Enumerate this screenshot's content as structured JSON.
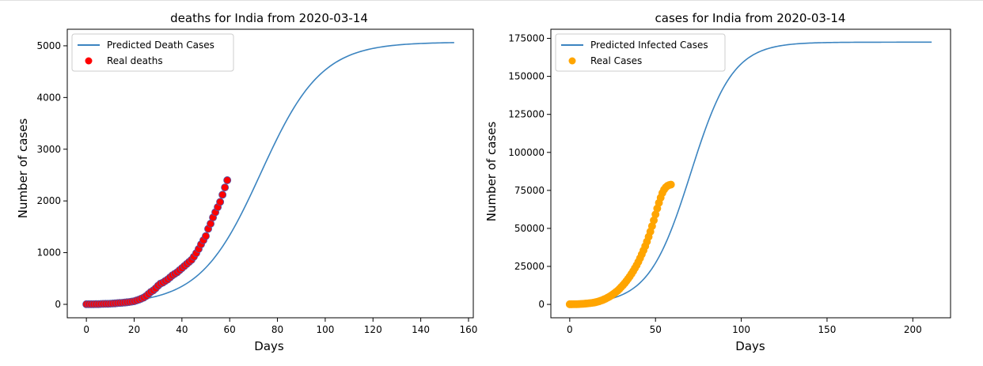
{
  "chart_data": [
    {
      "type": "line",
      "title": "deaths for India from 2020-03-14",
      "xlabel": "Days",
      "ylabel": "Number of cases",
      "xlim": [
        -8,
        162
      ],
      "ylim": [
        -260,
        5320
      ],
      "xticks": [
        0,
        20,
        40,
        60,
        80,
        100,
        120,
        140,
        160
      ],
      "yticks": [
        0,
        1000,
        2000,
        3000,
        4000,
        5000
      ],
      "grid": false,
      "legend_position": "upper-left",
      "series": [
        {
          "name": "Predicted Death Cases",
          "kind": "line",
          "color": "#3b84c0",
          "model": {
            "form": "logistic",
            "ceiling": 5070,
            "midpoint": 73,
            "rate": 0.079,
            "x_start": 0,
            "x_end": 154,
            "step": 1
          }
        },
        {
          "name": "Real deaths",
          "kind": "scatter",
          "color": "#ff0000",
          "edgecolor": "#5a4fa0",
          "x": [
            0,
            1,
            2,
            3,
            4,
            5,
            6,
            7,
            8,
            9,
            10,
            11,
            12,
            13,
            14,
            15,
            16,
            17,
            18,
            19,
            20,
            21,
            22,
            23,
            24,
            25,
            26,
            27,
            28,
            29,
            30,
            31,
            32,
            33,
            34,
            35,
            36,
            37,
            38,
            39,
            40,
            41,
            42,
            43,
            44,
            45,
            46,
            47,
            48,
            49,
            50,
            51,
            52,
            53,
            54,
            55,
            56,
            57,
            58,
            59
          ],
          "y": [
            2,
            2,
            2,
            3,
            4,
            4,
            7,
            9,
            10,
            11,
            13,
            16,
            19,
            24,
            27,
            30,
            35,
            40,
            45,
            52,
            60,
            75,
            90,
            110,
            130,
            160,
            200,
            240,
            270,
            310,
            360,
            400,
            420,
            450,
            480,
            520,
            560,
            590,
            620,
            660,
            700,
            740,
            780,
            820,
            860,
            920,
            990,
            1070,
            1160,
            1240,
            1320,
            1460,
            1560,
            1680,
            1780,
            1880,
            1980,
            2120,
            2260,
            2400
          ]
        }
      ]
    },
    {
      "type": "line",
      "title": "cases for India from 2020-03-14",
      "xlabel": "Days",
      "ylabel": "Number of cases",
      "xlim": [
        -11,
        222
      ],
      "ylim": [
        -8800,
        181000
      ],
      "xticks": [
        0,
        50,
        100,
        150,
        200
      ],
      "yticks": [
        0,
        25000,
        50000,
        75000,
        100000,
        125000,
        150000,
        175000
      ],
      "grid": false,
      "legend_position": "upper-left",
      "series": [
        {
          "name": "Predicted Infected Cases",
          "kind": "line",
          "color": "#3b84c0",
          "model": {
            "form": "logistic",
            "ceiling": 172500,
            "midpoint": 70.5,
            "rate": 0.0817,
            "x_start": 0,
            "x_end": 211,
            "step": 1
          }
        },
        {
          "name": "Real Cases",
          "kind": "scatter",
          "color": "#ffa500",
          "edgecolor": "#ffa500",
          "x": [
            0,
            1,
            2,
            3,
            4,
            5,
            6,
            7,
            8,
            9,
            10,
            11,
            12,
            13,
            14,
            15,
            16,
            17,
            18,
            19,
            20,
            21,
            22,
            23,
            24,
            25,
            26,
            27,
            28,
            29,
            30,
            31,
            32,
            33,
            34,
            35,
            36,
            37,
            38,
            39,
            40,
            41,
            42,
            43,
            44,
            45,
            46,
            47,
            48,
            49,
            50,
            51,
            52,
            53,
            54,
            55,
            56,
            57,
            58,
            59
          ],
          "y": [
            100,
            110,
            120,
            140,
            160,
            200,
            260,
            330,
            420,
            500,
            600,
            730,
            870,
            1000,
            1200,
            1400,
            1700,
            2000,
            2400,
            2800,
            3300,
            3800,
            4400,
            5000,
            5700,
            6500,
            7300,
            8200,
            9100,
            10200,
            11400,
            12600,
            13900,
            15300,
            16800,
            18400,
            20100,
            21900,
            23800,
            25800,
            28000,
            30400,
            32900,
            35500,
            38300,
            41300,
            44500,
            47900,
            51500,
            55300,
            59200,
            63100,
            66800,
            70200,
            73300,
            75500,
            77000,
            78000,
            78500,
            78800
          ]
        }
      ]
    }
  ]
}
